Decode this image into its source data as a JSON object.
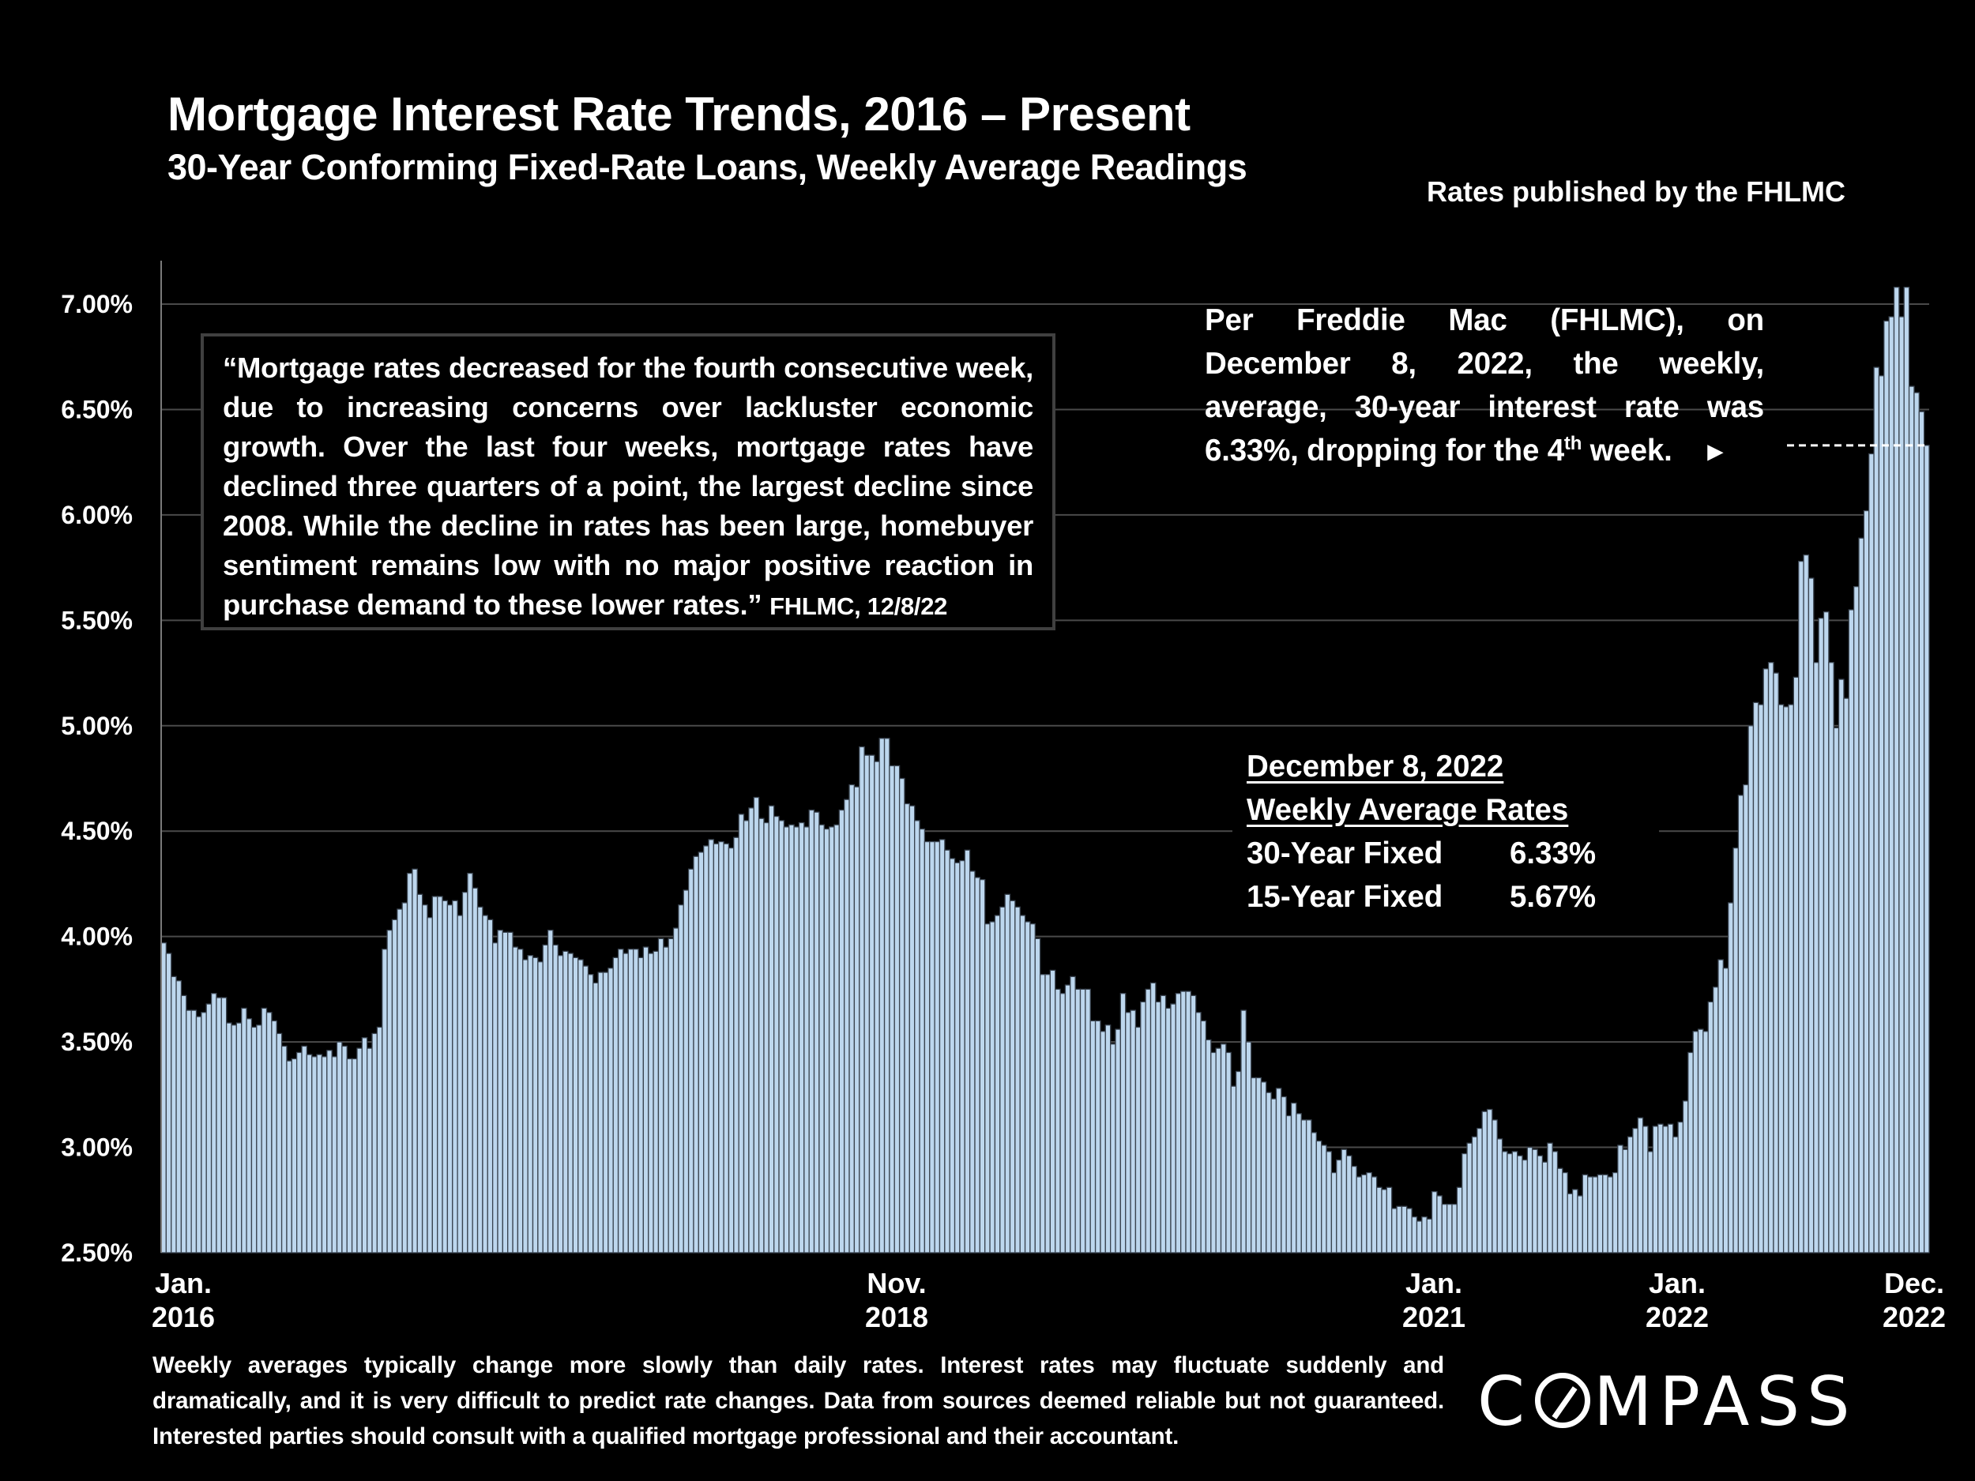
{
  "header": {
    "title": "Mortgage Interest Rate Trends, 2016 – Present",
    "subtitle": "30-Year Conforming Fixed-Rate Loans, Weekly Average Readings",
    "source": "Rates published by the FHLMC"
  },
  "quote": {
    "text": "“Mortgage rates decreased for the fourth consecutive week, due to increasing concerns over lackluster economic growth. Over the last four weeks, mortgage rates have declined three quarters of a point, the largest decline since 2008. While the decline in rates has been large, homebuyer sentiment remains low with no major positive reaction in purchase demand to these lower rates.”",
    "citation": "FHLMC, 12/8/22"
  },
  "note": {
    "text_before_sup": "Per Freddie Mac (FHLMC), on December 8, 2022, the weekly, average, 30-year interest rate was 6.33%, dropping for the 4",
    "sup": "th",
    "text_after_sup": " week.",
    "arrow": "►",
    "marker_value": 6.33
  },
  "rates_box": {
    "date": "December 8, 2022",
    "heading": "Weekly Average Rates",
    "rows": [
      {
        "label": "30-Year Fixed",
        "value": "6.33%"
      },
      {
        "label": "15-Year Fixed",
        "value": "5.67%"
      }
    ]
  },
  "footer": {
    "disclaimer": "Weekly averages typically change more slowly than daily rates. Interest rates may fluctuate suddenly and dramatically, and it is very difficult to predict rate changes. Data from sources deemed reliable but not guaranteed. Interested parties should consult with a qualified mortgage professional and their accountant.",
    "logo_before": "C",
    "logo_after": "MPASS"
  },
  "colors": {
    "bar_fill": "#bdd7ee",
    "bar_stroke": "#3a4450",
    "gridline": "#4a4a4a",
    "background": "#000000",
    "text": "#ffffff"
  },
  "chart_data": {
    "type": "bar",
    "title": "Mortgage Interest Rate Trends, 2016 – Present",
    "subtitle": "30-Year Conforming Fixed-Rate Loans, Weekly Average Readings",
    "xlabel": "",
    "ylabel": "",
    "ylim": [
      2.5,
      7.2
    ],
    "yticks": [
      2.5,
      3.0,
      3.5,
      4.0,
      4.5,
      5.0,
      5.5,
      6.0,
      6.5,
      7.0
    ],
    "ytick_labels": [
      "2.50%",
      "3.00%",
      "3.50%",
      "4.00%",
      "4.50%",
      "5.00%",
      "5.50%",
      "6.00%",
      "6.50%",
      "7.00%"
    ],
    "grid": true,
    "x_tick_labels": [
      {
        "line1": "Jan.",
        "line2": "2016",
        "index": 0
      },
      {
        "line1": "Nov.",
        "line2": "2018",
        "index": 149
      },
      {
        "line1": "Jan.",
        "line2": "2021",
        "index": 260
      },
      {
        "line1": "Jan.",
        "line2": "2022",
        "index": 309
      },
      {
        "line1": "Dec.",
        "line2": "2022",
        "index": 361
      }
    ],
    "series": [
      {
        "name": "30-Year Fixed Weekly Average (%)",
        "values": [
          3.97,
          3.92,
          3.81,
          3.79,
          3.72,
          3.65,
          3.65,
          3.62,
          3.64,
          3.68,
          3.73,
          3.71,
          3.71,
          3.59,
          3.58,
          3.59,
          3.66,
          3.61,
          3.57,
          3.58,
          3.66,
          3.64,
          3.6,
          3.54,
          3.48,
          3.41,
          3.42,
          3.45,
          3.48,
          3.44,
          3.43,
          3.44,
          3.43,
          3.46,
          3.43,
          3.5,
          3.48,
          3.42,
          3.42,
          3.47,
          3.52,
          3.47,
          3.54,
          3.57,
          3.94,
          4.03,
          4.08,
          4.13,
          4.16,
          4.3,
          4.32,
          4.2,
          4.15,
          4.09,
          4.19,
          4.19,
          4.17,
          4.15,
          4.17,
          4.1,
          4.21,
          4.3,
          4.23,
          4.14,
          4.1,
          4.08,
          3.97,
          4.03,
          4.02,
          4.02,
          3.95,
          3.94,
          3.89,
          3.91,
          3.9,
          3.88,
          3.96,
          4.03,
          3.96,
          3.91,
          3.93,
          3.92,
          3.9,
          3.89,
          3.86,
          3.82,
          3.78,
          3.83,
          3.83,
          3.85,
          3.9,
          3.94,
          3.92,
          3.94,
          3.94,
          3.9,
          3.95,
          3.92,
          3.93,
          3.99,
          3.95,
          3.99,
          4.04,
          4.15,
          4.22,
          4.32,
          4.38,
          4.4,
          4.43,
          4.46,
          4.44,
          4.45,
          4.44,
          4.42,
          4.47,
          4.58,
          4.55,
          4.61,
          4.66,
          4.56,
          4.54,
          4.62,
          4.57,
          4.55,
          4.52,
          4.53,
          4.52,
          4.54,
          4.52,
          4.6,
          4.59,
          4.53,
          4.51,
          4.52,
          4.53,
          4.6,
          4.65,
          4.72,
          4.71,
          4.9,
          4.86,
          4.86,
          4.83,
          4.94,
          4.94,
          4.81,
          4.81,
          4.75,
          4.63,
          4.62,
          4.55,
          4.51,
          4.45,
          4.45,
          4.45,
          4.46,
          4.41,
          4.37,
          4.35,
          4.36,
          4.41,
          4.31,
          4.28,
          4.27,
          4.06,
          4.07,
          4.1,
          4.14,
          4.2,
          4.17,
          4.14,
          4.1,
          4.07,
          4.06,
          3.99,
          3.82,
          3.82,
          3.84,
          3.75,
          3.73,
          3.77,
          3.81,
          3.75,
          3.75,
          3.75,
          3.6,
          3.6,
          3.55,
          3.58,
          3.49,
          3.56,
          3.73,
          3.64,
          3.65,
          3.57,
          3.69,
          3.75,
          3.78,
          3.69,
          3.72,
          3.66,
          3.68,
          3.73,
          3.74,
          3.74,
          3.72,
          3.64,
          3.6,
          3.51,
          3.45,
          3.47,
          3.49,
          3.45,
          3.29,
          3.36,
          3.65,
          3.5,
          3.33,
          3.33,
          3.31,
          3.26,
          3.23,
          3.28,
          3.24,
          3.15,
          3.21,
          3.16,
          3.13,
          3.13,
          3.07,
          3.03,
          3.01,
          2.98,
          2.88,
          2.94,
          2.99,
          2.96,
          2.91,
          2.86,
          2.87,
          2.88,
          2.86,
          2.81,
          2.8,
          2.81,
          2.71,
          2.72,
          2.72,
          2.71,
          2.67,
          2.65,
          2.67,
          2.66,
          2.79,
          2.77,
          2.73,
          2.73,
          2.73,
          2.81,
          2.97,
          3.02,
          3.05,
          3.09,
          3.17,
          3.18,
          3.13,
          3.04,
          2.98,
          2.97,
          2.98,
          2.96,
          2.94,
          3.0,
          2.99,
          2.96,
          2.93,
          3.02,
          2.98,
          2.9,
          2.88,
          2.78,
          2.8,
          2.77,
          2.87,
          2.86,
          2.86,
          2.87,
          2.87,
          2.86,
          2.88,
          3.01,
          2.99,
          3.05,
          3.09,
          3.14,
          3.1,
          2.98,
          3.1,
          3.11,
          3.1,
          3.11,
          3.05,
          3.12,
          3.22,
          3.45,
          3.55,
          3.56,
          3.55,
          3.69,
          3.76,
          3.89,
          3.85,
          4.16,
          4.42,
          4.67,
          4.72,
          5.0,
          5.11,
          5.1,
          5.27,
          5.3,
          5.25,
          5.1,
          5.09,
          5.1,
          5.23,
          5.78,
          5.81,
          5.7,
          5.3,
          5.51,
          5.54,
          5.3,
          4.99,
          5.22,
          5.13,
          5.55,
          5.66,
          5.89,
          6.02,
          6.29,
          6.7,
          6.66,
          6.92,
          6.94,
          7.08,
          6.94,
          7.08,
          6.61,
          6.58,
          6.49,
          6.33
        ]
      }
    ],
    "annotations": [
      "Per Freddie Mac (FHLMC), on December 8, 2022, the weekly, average, 30-year interest rate was 6.33%, dropping for the 4th week.",
      "December 8, 2022 Weekly Average Rates: 30-Year Fixed 6.33%, 15-Year Fixed 5.67%"
    ]
  }
}
